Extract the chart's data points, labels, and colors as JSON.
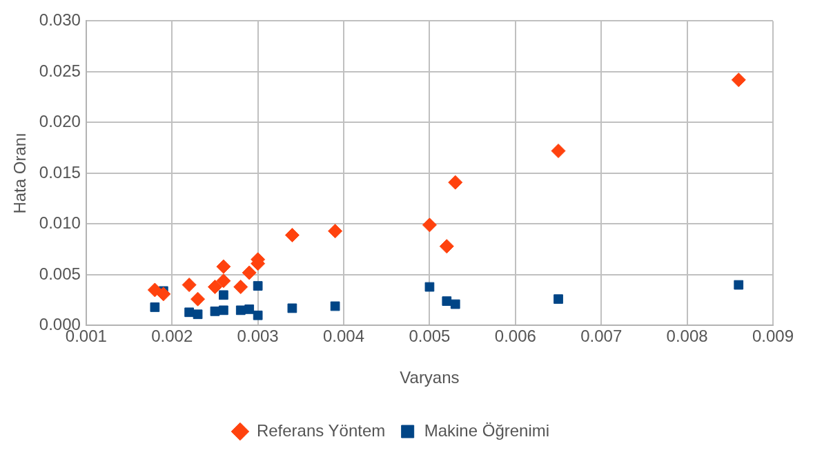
{
  "chart_data": {
    "type": "scatter",
    "xlabel": "Varyans",
    "ylabel": "Hata Oranı",
    "xlim": [
      0.001,
      0.009
    ],
    "xticks": [
      {
        "value": 0.001,
        "label": "0.001"
      },
      {
        "value": 0.002,
        "label": "0.002"
      },
      {
        "value": 0.003,
        "label": "0.003"
      },
      {
        "value": 0.004,
        "label": "0.004"
      },
      {
        "value": 0.005,
        "label": "0.005"
      },
      {
        "value": 0.006,
        "label": "0.006"
      },
      {
        "value": 0.007,
        "label": "0.007"
      },
      {
        "value": 0.008,
        "label": "0.008"
      },
      {
        "value": 0.009,
        "label": "0.009"
      }
    ],
    "ylim": [
      0,
      0.03
    ],
    "yticks": [
      {
        "value": 0,
        "label": "0.000"
      },
      {
        "value": 0.005,
        "label": "0.005"
      },
      {
        "value": 0.01,
        "label": "0.010"
      },
      {
        "value": 0.015,
        "label": "0.015"
      },
      {
        "value": 0.02,
        "label": "0.020"
      },
      {
        "value": 0.025,
        "label": "0.025"
      },
      {
        "value": 0.03,
        "label": "0.030"
      }
    ],
    "grid": true,
    "legend": "bottom",
    "series": [
      {
        "name": "Referans Yöntem",
        "color": "#ff420e",
        "marker": "diamond",
        "x": [
          0.0018,
          0.0019,
          0.0022,
          0.0023,
          0.0025,
          0.0026,
          0.0026,
          0.0028,
          0.0029,
          0.003,
          0.003,
          0.0034,
          0.0039,
          0.005,
          0.0052,
          0.0053,
          0.0065,
          0.0086
        ],
        "values": [
          0.0035,
          0.0031,
          0.004,
          0.0026,
          0.0038,
          0.0058,
          0.0044,
          0.0038,
          0.0052,
          0.0065,
          0.0061,
          0.0089,
          0.0093,
          0.0099,
          0.0078,
          0.0141,
          0.0172,
          0.0242
        ]
      },
      {
        "name": "Makine Öğrenimi",
        "color": "#004586",
        "marker": "square",
        "x": [
          0.0018,
          0.0019,
          0.0022,
          0.0023,
          0.0025,
          0.0026,
          0.0026,
          0.0028,
          0.0029,
          0.003,
          0.003,
          0.0034,
          0.0039,
          0.005,
          0.0052,
          0.0053,
          0.0065,
          0.0086
        ],
        "values": [
          0.0018,
          0.0034,
          0.0013,
          0.0011,
          0.0014,
          0.0015,
          0.003,
          0.0015,
          0.0016,
          0.001,
          0.0039,
          0.0017,
          0.0019,
          0.0038,
          0.0024,
          0.0021,
          0.0026,
          0.004
        ]
      }
    ]
  }
}
